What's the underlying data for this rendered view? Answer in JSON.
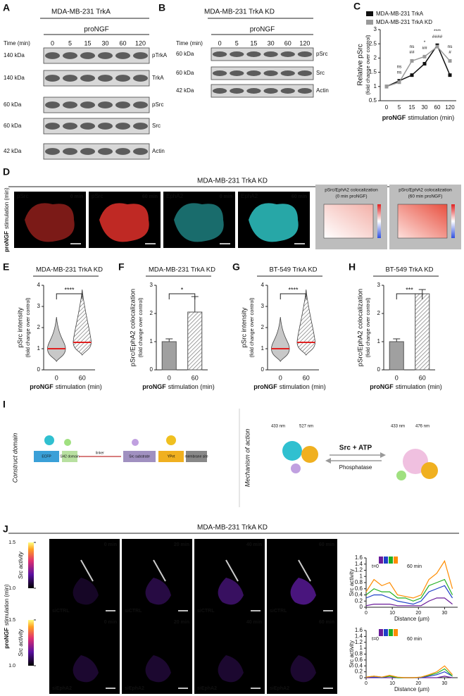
{
  "panel_letters": [
    "A",
    "B",
    "C",
    "D",
    "E",
    "F",
    "G",
    "H",
    "I",
    "J"
  ],
  "panel_a": {
    "title": "MDA-MB-231 TrkA",
    "treatment": "proNGF",
    "time_label": "Time (min)",
    "times": [
      "0",
      "5",
      "15",
      "30",
      "60",
      "120"
    ],
    "blots": [
      {
        "kda": "140 kDa",
        "protein": "pTrkA"
      },
      {
        "kda": "140 kDa",
        "protein": "TrkA"
      },
      {
        "kda": "60 kDa",
        "protein": "pSrc"
      },
      {
        "kda": "60 kDa",
        "protein": "Src"
      },
      {
        "kda": "42 kDa",
        "protein": "Actin"
      }
    ]
  },
  "panel_b": {
    "title": "MDA-MB-231 TrkA KD",
    "treatment": "proNGF",
    "time_label": "Time (min)",
    "times": [
      "0",
      "5",
      "15",
      "30",
      "60",
      "120"
    ],
    "blots": [
      {
        "kda": "60 kDa",
        "protein": "pSrc"
      },
      {
        "kda": "60 kDa",
        "protein": "Src"
      },
      {
        "kda": "42 kDa",
        "protein": "Actin"
      }
    ]
  },
  "panel_c": {
    "type": "line",
    "y_label": [
      "Relative pSrc",
      "(fold change over control)"
    ],
    "x_label_bold": "proNGF",
    "x_label": "stimulation (min)",
    "categories": [
      "0",
      "5",
      "15",
      "30",
      "60",
      "120"
    ],
    "series": [
      {
        "name": "MDA-MB-231 TrkA",
        "color": "#111111",
        "values": [
          1,
          1.2,
          1.4,
          1.8,
          2.45,
          1.4
        ],
        "annotations": [
          null,
          "ns",
          "ns",
          "*",
          "****",
          "ns"
        ]
      },
      {
        "name": "MDA-MB-231 TrkA KD",
        "color": "#999999",
        "values": [
          1,
          1.15,
          1.9,
          2.05,
          2.4,
          1.9
        ],
        "annotations": [
          null,
          "ns",
          "##",
          "##",
          "####",
          "#"
        ]
      }
    ],
    "ylim": [
      0.5,
      3
    ],
    "yticks": [
      0.5,
      1,
      1.5,
      2,
      2.5,
      3
    ]
  },
  "panel_d": {
    "title": "MDA-MB-231 TrkA KD",
    "y_label_bold": "proNGF",
    "y_label": "stimulation (min)",
    "images": [
      {
        "label": "pSrc",
        "time": "0 min",
        "color": "#e0302a"
      },
      {
        "label": "pSrc",
        "time": "60 min",
        "color": "#e0302a"
      },
      {
        "label": "EphA2",
        "time": "0 min",
        "color": "#2ec4c4"
      },
      {
        "label": "EphA2",
        "time": "60 min",
        "color": "#2ec4c4"
      }
    ],
    "colocalization": [
      {
        "title": "pSrc/EphA2 colocalization",
        "subtitle": "(0 min proNGF)"
      },
      {
        "title": "pSrc/EphA2 colocalization",
        "subtitle": "(60 min proNGF)"
      }
    ]
  },
  "panel_e": {
    "type": "violin",
    "title": "MDA-MB-231 TrkA KD",
    "y_label": [
      "pSrc intensity",
      "(fold change over control)"
    ],
    "x_label_bold": "proNGF",
    "x_label": "stimulation (min)",
    "categories": [
      "0",
      "60"
    ],
    "values": [
      1.0,
      1.3
    ],
    "significance": "****",
    "ylim": [
      0,
      4
    ],
    "yticks": [
      0,
      1,
      2,
      3,
      4
    ]
  },
  "panel_f": {
    "type": "bar",
    "title": "MDA-MB-231 TrkA KD",
    "y_label": [
      "pSrc/EphA2 colocalization",
      "(fold change over control)"
    ],
    "x_label_bold": "proNGF",
    "x_label": "stimulation (min)",
    "categories": [
      "0",
      "60"
    ],
    "values": [
      1,
      2.05
    ],
    "errors": [
      0.1,
      0.55
    ],
    "significance": "*",
    "ylim": [
      0,
      3
    ],
    "yticks": [
      0,
      1,
      2,
      3
    ]
  },
  "panel_g": {
    "type": "violin",
    "title": "BT-549 TrkA KD",
    "y_label": [
      "pSrc intensity",
      "(fold change over control)"
    ],
    "x_label_bold": "proNGF",
    "x_label": "stimulation (min)",
    "categories": [
      "0",
      "60"
    ],
    "values": [
      1.0,
      1.3
    ],
    "significance": "****",
    "ylim": [
      0,
      4
    ],
    "yticks": [
      0,
      1,
      2,
      3,
      4
    ]
  },
  "panel_h": {
    "type": "bar",
    "title": "BT-549 TrkA KD",
    "y_label": [
      "pSrc/EphA2 colocalization",
      "(fold change over control)"
    ],
    "x_label_bold": "proNGF",
    "x_label": "stimulation (min)",
    "categories": [
      "0",
      "60"
    ],
    "values": [
      1,
      2.7
    ],
    "errors": [
      0.1,
      0.15
    ],
    "significance": "***",
    "ylim": [
      0,
      3
    ],
    "yticks": [
      0,
      1,
      2,
      3
    ]
  },
  "panel_i": {
    "left_caption": "Construct domain",
    "right_caption": "Mechanism of action",
    "domains": [
      "ECFP",
      "SH2 domain",
      "linker",
      "Src substrate",
      "YPet",
      "membrane site"
    ],
    "wavelengths": [
      "433 nm",
      "527 nm",
      "433 nm",
      "476 nm"
    ],
    "forward": "Src + ATP",
    "reverse": "Phosphatase"
  },
  "panel_j": {
    "title": "MDA-MB-231 TrkA KD",
    "y_label_bold": "proNGF",
    "y_label": "stimulation (min)",
    "colorbar": {
      "label": "Src activity",
      "ticks": [
        1.5,
        {
          "value": 1.0,
          "label": "1.0"
        }
      ]
    },
    "times": [
      "0 min",
      "20 min",
      "40 min",
      "60 min"
    ],
    "rows": [
      {
        "condition": "siCTRL",
        "color": "#ffffff"
      },
      {
        "condition": "siEphA2",
        "color": "#f0a020"
      }
    ],
    "legend": [
      "t=0",
      "60 min"
    ],
    "profiles": [
      {
        "type": "line",
        "y_label": "Src activity",
        "x_label": "Distance (µm)",
        "x": [
          0,
          3,
          6,
          9,
          12,
          15,
          18,
          21,
          24,
          27,
          30,
          33
        ],
        "xlim": [
          0,
          35
        ],
        "xticks": [
          0,
          10,
          20,
          30
        ],
        "ylim": [
          0,
          1.6
        ],
        "yticks": [
          0,
          0.2,
          0.4,
          0.6,
          0.8,
          1,
          1.2,
          1.4,
          1.6
        ],
        "series": [
          {
            "color": "#6a1b9a",
            "values": [
              0.05,
              0.1,
              0.1,
              0.1,
              0.05,
              0.05,
              0.05,
              0.05,
              0.2,
              0.3,
              0.3,
              0.1
            ]
          },
          {
            "color": "#1e40c8",
            "values": [
              0.3,
              0.4,
              0.4,
              0.3,
              0.2,
              0.15,
              0.1,
              0.2,
              0.5,
              0.6,
              0.7,
              0.3
            ]
          },
          {
            "color": "#22b022",
            "values": [
              0.4,
              0.6,
              0.5,
              0.5,
              0.3,
              0.3,
              0.2,
              0.3,
              0.7,
              0.8,
              0.9,
              0.4
            ]
          },
          {
            "color": "#ff8c00",
            "values": [
              0.5,
              0.9,
              0.7,
              0.8,
              0.4,
              0.35,
              0.3,
              0.4,
              0.9,
              1.1,
              1.5,
              0.6
            ]
          }
        ]
      },
      {
        "type": "line",
        "y_label": "Src activity",
        "x_label": "Distance (µm)",
        "x": [
          0,
          3,
          6,
          9,
          12,
          15,
          18,
          21,
          24,
          27,
          30,
          33
        ],
        "xlim": [
          0,
          35
        ],
        "xticks": [
          0,
          10,
          20,
          30
        ],
        "ylim": [
          0,
          1.6
        ],
        "yticks": [
          0,
          0.2,
          0.4,
          0.6,
          0.8,
          1,
          1.2,
          1.4,
          1.6
        ],
        "series": [
          {
            "color": "#6a1b9a",
            "values": [
              0,
              0,
              0,
              0,
              0,
              0,
              0,
              0,
              0,
              0,
              0.05,
              0
            ]
          },
          {
            "color": "#1e40c8",
            "values": [
              0.02,
              0.02,
              0,
              0.05,
              0,
              0,
              0,
              0,
              0.05,
              0.1,
              0.2,
              0.05
            ]
          },
          {
            "color": "#22b022",
            "values": [
              0.02,
              0.05,
              0.02,
              0.05,
              0,
              0,
              0,
              0.02,
              0.08,
              0.15,
              0.3,
              0.05
            ]
          },
          {
            "color": "#ff8c00",
            "values": [
              0.02,
              0.05,
              0.02,
              0.08,
              0.02,
              0,
              0,
              0.02,
              0.1,
              0.2,
              0.4,
              0.1
            ]
          }
        ]
      }
    ]
  }
}
